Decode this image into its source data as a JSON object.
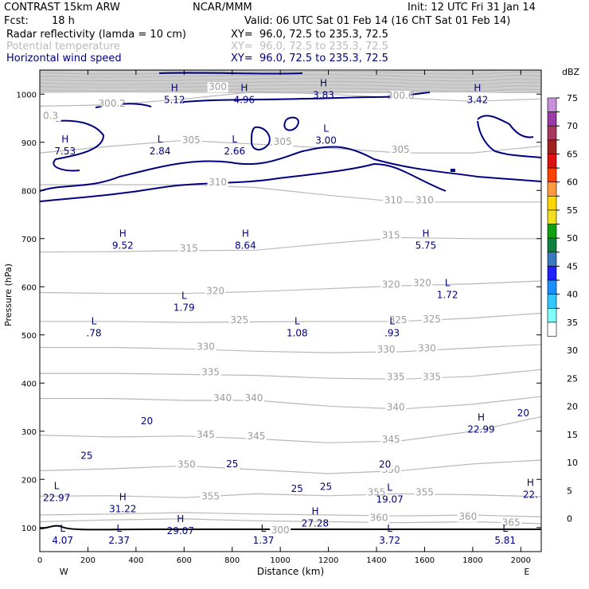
{
  "header": {
    "title": "CONTRAST 15km ARW",
    "center": "NCAR/MMM",
    "init": "Init: 12 UTC Fri 31 Jan 14",
    "fcst_label": "Fcst:",
    "fcst_value": "18 h",
    "valid": "Valid: 06 UTC Sat 01 Feb 14 (16 ChT Sat 01 Feb 14)",
    "fields": [
      {
        "name": "Radar reflectivity (lamda = 10 cm)",
        "xy": "XY=  96.0, 72.5 to 235.3, 72.5",
        "color": "#000000"
      },
      {
        "name": "Potential temperature",
        "xy": "XY=  96.0, 72.5 to 235.3, 72.5",
        "color": "#bbbbbb"
      },
      {
        "name": "Horizontal wind speed",
        "xy": "XY=  96.0, 72.5 to 235.3, 72.5",
        "color": "#000080"
      }
    ]
  },
  "chart_data": {
    "type": "contour",
    "xlabel": "Distance (km)",
    "ylabel": "Pressure (hPa)",
    "x_ticks": [
      "0",
      "200",
      "400",
      "600",
      "800",
      "1000",
      "1200",
      "1400",
      "1600",
      "1800",
      "2000"
    ],
    "x_end_labels": [
      "W",
      "E"
    ],
    "y_ticks": [
      "100",
      "200",
      "300",
      "400",
      "500",
      "600",
      "700",
      "800",
      "900",
      "1000"
    ],
    "xlim": [
      0,
      2085
    ],
    "ylim": [
      1050,
      50
    ],
    "colorbar": {
      "unit": "dBZ",
      "levels": [
        "75",
        "70",
        "65",
        "60",
        "55",
        "50",
        "45",
        "40",
        "35",
        "30",
        "25",
        "20",
        "15",
        "10",
        "5",
        "0"
      ],
      "colors": [
        "#c890d8",
        "#9a3ca8",
        "#a83860",
        "#a02020",
        "#e01010",
        "#ff4000",
        "#ff9a40",
        "#ffd700",
        "#f0e020",
        "#10a010",
        "#108040",
        "#3a78c0",
        "#2020ff",
        "#1890ff",
        "#30c8ff",
        "#80ffff",
        "#ffffff"
      ]
    },
    "theta_labels": [
      {
        "text": "300",
        "x": 1000,
        "p": 90
      },
      {
        "text": "365",
        "x": 1960,
        "p": 105
      },
      {
        "text": "360",
        "x": 1410,
        "p": 115
      },
      {
        "text": "360",
        "x": 1780,
        "p": 118
      },
      {
        "text": "355",
        "x": 710,
        "p": 160
      },
      {
        "text": "355",
        "x": 1400,
        "p": 168
      },
      {
        "text": "355",
        "x": 1600,
        "p": 168
      },
      {
        "text": "350",
        "x": 610,
        "p": 226
      },
      {
        "text": "350",
        "x": 1460,
        "p": 215
      },
      {
        "text": "345",
        "x": 690,
        "p": 288
      },
      {
        "text": "345",
        "x": 900,
        "p": 285
      },
      {
        "text": "345",
        "x": 1460,
        "p": 278
      },
      {
        "text": "340",
        "x": 760,
        "p": 364
      },
      {
        "text": "340",
        "x": 890,
        "p": 364
      },
      {
        "text": "340",
        "x": 1480,
        "p": 345
      },
      {
        "text": "335",
        "x": 710,
        "p": 418
      },
      {
        "text": "335",
        "x": 1480,
        "p": 408
      },
      {
        "text": "335",
        "x": 1630,
        "p": 408
      },
      {
        "text": "330",
        "x": 690,
        "p": 471
      },
      {
        "text": "330",
        "x": 1440,
        "p": 465
      },
      {
        "text": "330",
        "x": 1610,
        "p": 467
      },
      {
        "text": "325",
        "x": 830,
        "p": 526
      },
      {
        "text": "325",
        "x": 1490,
        "p": 526
      },
      {
        "text": "325",
        "x": 1630,
        "p": 528
      },
      {
        "text": "320",
        "x": 730,
        "p": 586
      },
      {
        "text": "320",
        "x": 1460,
        "p": 600
      },
      {
        "text": "320",
        "x": 1590,
        "p": 603
      },
      {
        "text": "315",
        "x": 620,
        "p": 675
      },
      {
        "text": "315",
        "x": 1460,
        "p": 702
      },
      {
        "text": "310",
        "x": 1470,
        "p": 775
      },
      {
        "text": "310",
        "x": 1600,
        "p": 775
      },
      {
        "text": "310",
        "x": 740,
        "p": 812
      },
      {
        "text": "305",
        "x": 630,
        "p": 900
      },
      {
        "text": "305",
        "x": 1010,
        "p": 896
      },
      {
        "text": "305",
        "x": 1500,
        "p": 880
      },
      {
        "text": "0.3",
        "x": 45,
        "p": 950
      },
      {
        "text": "300.2",
        "x": 300,
        "p": 976
      },
      {
        "text": "300",
        "x": 740,
        "p": 1010
      },
      {
        "text": "300.6",
        "x": 1500,
        "p": 992
      }
    ],
    "wind_labels": [
      {
        "text": "25",
        "x": 195,
        "p": 244
      },
      {
        "text": "20",
        "x": 445,
        "p": 316
      },
      {
        "text": "25",
        "x": 800,
        "p": 227
      },
      {
        "text": "25",
        "x": 1070,
        "p": 176
      },
      {
        "text": "25",
        "x": 1190,
        "p": 180
      },
      {
        "text": "20",
        "x": 1435,
        "p": 226
      },
      {
        "text": "20",
        "x": 2010,
        "p": 333
      }
    ],
    "extrema": [
      {
        "kind": "L",
        "value": "4.07",
        "x": 95,
        "p": 75
      },
      {
        "kind": "L",
        "value": "2.37",
        "x": 330,
        "p": 75
      },
      {
        "kind": "H",
        "value": "29.07",
        "x": 585,
        "p": 95
      },
      {
        "kind": "L",
        "value": "1.37",
        "x": 930,
        "p": 75
      },
      {
        "kind": "L",
        "value": "3.72",
        "x": 1455,
        "p": 75
      },
      {
        "kind": "L",
        "value": "5.81",
        "x": 1935,
        "p": 75
      },
      {
        "kind": "H",
        "value": "31.22",
        "x": 345,
        "p": 140
      },
      {
        "kind": "H",
        "value": "27.28",
        "x": 1145,
        "p": 110
      },
      {
        "kind": "L",
        "value": "22.97",
        "x": 70,
        "p": 163
      },
      {
        "kind": "L",
        "value": "19.07",
        "x": 1455,
        "p": 160
      },
      {
        "kind": "H",
        "value": "22.",
        "x": 2040,
        "p": 170
      },
      {
        "kind": "H",
        "value": "22.99",
        "x": 1835,
        "p": 305
      },
      {
        "kind": "L",
        "value": ".78",
        "x": 225,
        "p": 505
      },
      {
        "kind": "L",
        "value": "1.79",
        "x": 600,
        "p": 558
      },
      {
        "kind": "L",
        "value": "1.08",
        "x": 1070,
        "p": 505
      },
      {
        "kind": "L",
        "value": ".93",
        "x": 1465,
        "p": 505
      },
      {
        "kind": "L",
        "value": "1.72",
        "x": 1695,
        "p": 585
      },
      {
        "kind": "H",
        "value": "9.52",
        "x": 345,
        "p": 687
      },
      {
        "kind": "H",
        "value": "8.64",
        "x": 855,
        "p": 687
      },
      {
        "kind": "H",
        "value": "5.75",
        "x": 1605,
        "p": 687
      },
      {
        "kind": "H",
        "value": "7.53",
        "x": 105,
        "p": 883
      },
      {
        "kind": "L",
        "value": "2.84",
        "x": 500,
        "p": 883
      },
      {
        "kind": "L",
        "value": "2.66",
        "x": 810,
        "p": 883
      },
      {
        "kind": "L",
        "value": "3.00",
        "x": 1190,
        "p": 905
      },
      {
        "kind": "H",
        "value": "5.12",
        "x": 560,
        "p": 990
      },
      {
        "kind": "H",
        "value": "4.96",
        "x": 850,
        "p": 990
      },
      {
        "kind": "H",
        "value": "3.83",
        "x": 1180,
        "p": 1000
      },
      {
        "kind": "H",
        "value": "3.42",
        "x": 1820,
        "p": 990
      }
    ]
  }
}
